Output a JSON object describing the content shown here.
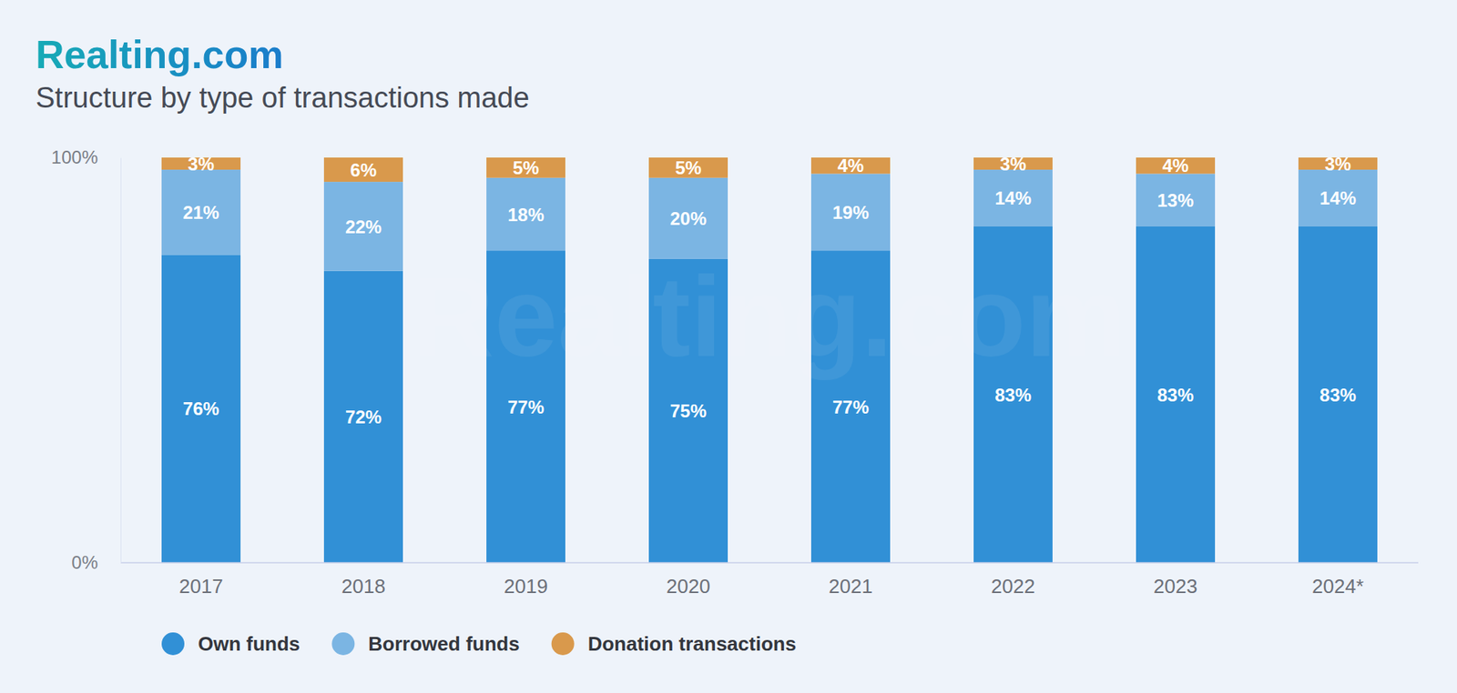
{
  "chart_data": {
    "type": "bar",
    "stacked": true,
    "title": "Structure by type of transactions made",
    "annotations": [
      "Realting.com"
    ],
    "categories": [
      "2017",
      "2018",
      "2019",
      "2020",
      "2021",
      "2022",
      "2023",
      "2024*"
    ],
    "series": [
      {
        "name": "Own funds",
        "color": "#3190d6",
        "values": [
          76,
          72,
          77,
          75,
          77,
          83,
          83,
          83
        ],
        "value_labels": [
          "76%",
          "72%",
          "77%",
          "75%",
          "77%",
          "83%",
          "83%",
          "83%"
        ]
      },
      {
        "name": "Borrowed funds",
        "color": "#7bb5e3",
        "values": [
          21,
          22,
          18,
          20,
          19,
          14,
          13,
          14
        ],
        "value_labels": [
          "21%",
          "22%",
          "18%",
          "20%",
          "19%",
          "14%",
          "13%",
          "14%"
        ]
      },
      {
        "name": "Donation transactions",
        "color": "#d9994c",
        "values": [
          3,
          6,
          5,
          5,
          4,
          3,
          4,
          3
        ],
        "value_labels": [
          "3%",
          "6%",
          "5%",
          "5%",
          "4%",
          "3%",
          "4%",
          "3%"
        ]
      }
    ],
    "ylim": [
      0,
      100
    ],
    "yticks": [
      {
        "value": 0,
        "label": "0%"
      },
      {
        "value": 100,
        "label": "100%"
      }
    ],
    "grid": false,
    "legend": "bottom",
    "data_labels": true
  }
}
